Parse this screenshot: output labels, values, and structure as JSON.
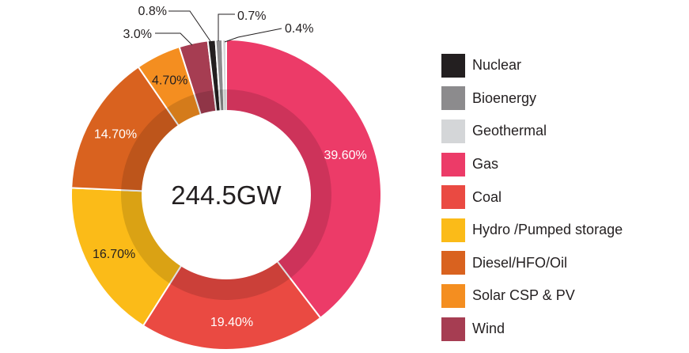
{
  "chart_data": {
    "type": "pie",
    "subtype": "donut",
    "center_label": "244.5GW",
    "legend_position": "right",
    "categories": [
      "Nuclear",
      "Bioenergy",
      "Geothermal",
      "Gas",
      "Coal",
      "Hydro /Pumped storage",
      "Diesel/HFO/Oil",
      "Solar CSP & PV",
      "Wind"
    ],
    "values": [
      0.8,
      0.7,
      0.4,
      39.6,
      19.4,
      16.7,
      14.7,
      4.7,
      3.0
    ],
    "data_labels": [
      "0.8%",
      "0.7%",
      "0.4%",
      "39.60%",
      "19.40%",
      "16.70%",
      "14.70%",
      "4.70%",
      "3.0%"
    ],
    "colors": [
      "#231f20",
      "#8c8b8d",
      "#d4d6d8",
      "#ec3b68",
      "#ea4a42",
      "#fbbb18",
      "#d9621f",
      "#f48e20",
      "#a63d52"
    ],
    "label_colors": [
      "#231f20",
      "#231f20",
      "#231f20",
      "#ffffff",
      "#ffffff",
      "#231f20",
      "#ffffff",
      "#231f20",
      "#231f20"
    ]
  }
}
